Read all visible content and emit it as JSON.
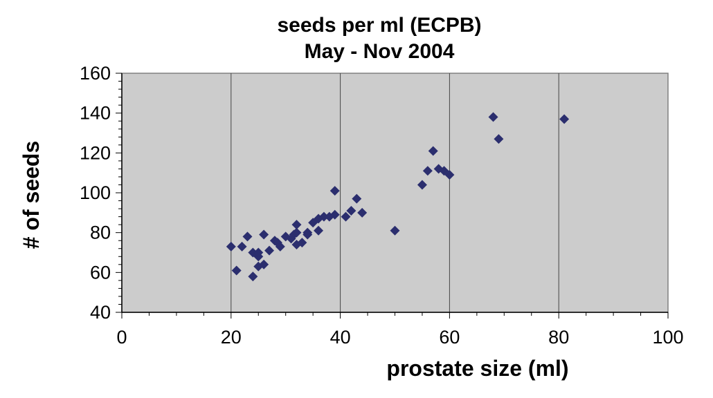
{
  "chart_data": {
    "type": "scatter",
    "title": "seeds per ml (ECPB)",
    "subtitle": "May - Nov 2004",
    "xlabel": "prostate size (ml)",
    "ylabel": "# of seeds",
    "xlim": [
      0,
      100
    ],
    "ylim": [
      40,
      160
    ],
    "xticks": [
      "0",
      "20",
      "40",
      "60",
      "80",
      "100"
    ],
    "yticks": [
      "40",
      "60",
      "80",
      "100",
      "120",
      "140",
      "160"
    ],
    "grid": "vertical",
    "plot_background": "#cccccc",
    "marker_color": "#2b2e6e",
    "marker": "diamond",
    "series": [
      {
        "points": [
          [
            20,
            73
          ],
          [
            21,
            61
          ],
          [
            22,
            73
          ],
          [
            23,
            78
          ],
          [
            24,
            58
          ],
          [
            24,
            70
          ],
          [
            25,
            63
          ],
          [
            25,
            68
          ],
          [
            25,
            70
          ],
          [
            26,
            64
          ],
          [
            26,
            79
          ],
          [
            27,
            71
          ],
          [
            28,
            76
          ],
          [
            28.5,
            75
          ],
          [
            29,
            73
          ],
          [
            30,
            78
          ],
          [
            31,
            77
          ],
          [
            31.5,
            79
          ],
          [
            32,
            74
          ],
          [
            32,
            80
          ],
          [
            32,
            84
          ],
          [
            33,
            75
          ],
          [
            34,
            79
          ],
          [
            34,
            80
          ],
          [
            35,
            85
          ],
          [
            36,
            81
          ],
          [
            36,
            87
          ],
          [
            37,
            88
          ],
          [
            38,
            88
          ],
          [
            39,
            89
          ],
          [
            39,
            101
          ],
          [
            41,
            88
          ],
          [
            42,
            91
          ],
          [
            43,
            97
          ],
          [
            44,
            90
          ],
          [
            50,
            81
          ],
          [
            55,
            104
          ],
          [
            56,
            111
          ],
          [
            57,
            121
          ],
          [
            58,
            112
          ],
          [
            59,
            111
          ],
          [
            60,
            109
          ],
          [
            68,
            138
          ],
          [
            69,
            127
          ],
          [
            81,
            137
          ]
        ]
      }
    ]
  }
}
